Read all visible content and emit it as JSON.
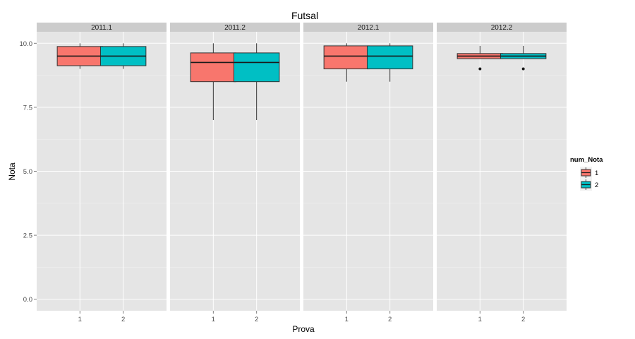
{
  "chart_data": {
    "type": "boxplot",
    "title": "Futsal",
    "xlabel": "Prova",
    "ylabel": "Nota",
    "ylim": [
      -0.45,
      10.45
    ],
    "y_ticks": [
      0.0,
      2.5,
      5.0,
      7.5,
      10.0
    ],
    "y_tick_labels": [
      "0.0",
      "2.5",
      "5.0",
      "7.5",
      "10.0"
    ],
    "x_categories": [
      "1",
      "2"
    ],
    "grid": true,
    "legend": {
      "title": "num_Nota",
      "position": "right",
      "entries": [
        {
          "label": "1",
          "color": "#F8766D"
        },
        {
          "label": "2",
          "color": "#00BFC4"
        }
      ]
    },
    "panels": [
      {
        "label": "2011.1",
        "boxes": [
          {
            "x": "1",
            "group": "1",
            "min": 9.0,
            "q1": 9.125,
            "median": 9.5,
            "q3": 9.875,
            "max": 10.0,
            "outliers": []
          },
          {
            "x": "2",
            "group": "2",
            "min": 9.0,
            "q1": 9.125,
            "median": 9.5,
            "q3": 9.875,
            "max": 10.0,
            "outliers": []
          }
        ]
      },
      {
        "label": "2011.2",
        "boxes": [
          {
            "x": "1",
            "group": "1",
            "min": 7.0,
            "q1": 8.5,
            "median": 9.25,
            "q3": 9.625,
            "max": 10.0,
            "outliers": []
          },
          {
            "x": "2",
            "group": "2",
            "min": 7.0,
            "q1": 8.5,
            "median": 9.25,
            "q3": 9.625,
            "max": 10.0,
            "outliers": []
          }
        ]
      },
      {
        "label": "2012.1",
        "boxes": [
          {
            "x": "1",
            "group": "1",
            "min": 8.5,
            "q1": 9.0,
            "median": 9.5,
            "q3": 9.9,
            "max": 10.0,
            "outliers": []
          },
          {
            "x": "2",
            "group": "2",
            "min": 8.5,
            "q1": 9.0,
            "median": 9.5,
            "q3": 9.9,
            "max": 10.0,
            "outliers": []
          }
        ]
      },
      {
        "label": "2012.2",
        "boxes": [
          {
            "x": "1",
            "group": "1",
            "min": 9.4,
            "q1": 9.4,
            "median": 9.5,
            "q3": 9.6,
            "max": 9.9,
            "outliers": [
              9.0
            ]
          },
          {
            "x": "2",
            "group": "2",
            "min": 9.4,
            "q1": 9.4,
            "median": 9.5,
            "q3": 9.6,
            "max": 9.9,
            "outliers": [
              9.0
            ]
          }
        ]
      }
    ]
  }
}
